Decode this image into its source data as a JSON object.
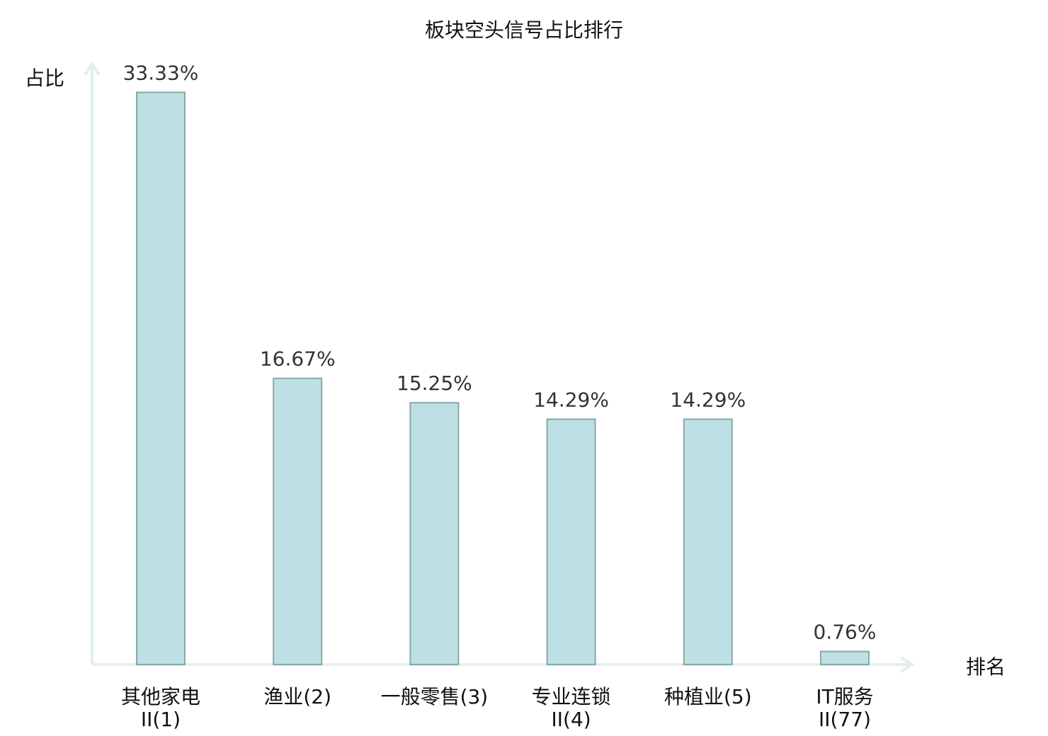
{
  "chart_data": {
    "type": "bar",
    "title": "板块空头信号占比排行",
    "ylabel": "占比",
    "xlabel": "排名",
    "ylim": [
      0,
      35
    ],
    "grid": false,
    "categories": [
      [
        "其他家电",
        "II(1)"
      ],
      [
        "渔业(2)"
      ],
      [
        "一般零售(3)"
      ],
      [
        "专业连锁",
        "II(4)"
      ],
      [
        "种植业(5)"
      ],
      [
        "IT服务",
        "II(77)"
      ]
    ],
    "values": [
      33.33,
      16.67,
      15.25,
      14.29,
      14.29,
      0.76
    ],
    "value_labels": [
      "33.33%",
      "16.67%",
      "15.25%",
      "14.29%",
      "14.29%",
      "0.76%"
    ],
    "highlight_index": 5,
    "colors": {
      "bar_fill": "#bce0e3",
      "bar_stroke": "#8aa8a8",
      "axis": "#dff1ef",
      "highlight_text": "#e02020",
      "text": "#111111",
      "value_text": "#333333"
    }
  }
}
